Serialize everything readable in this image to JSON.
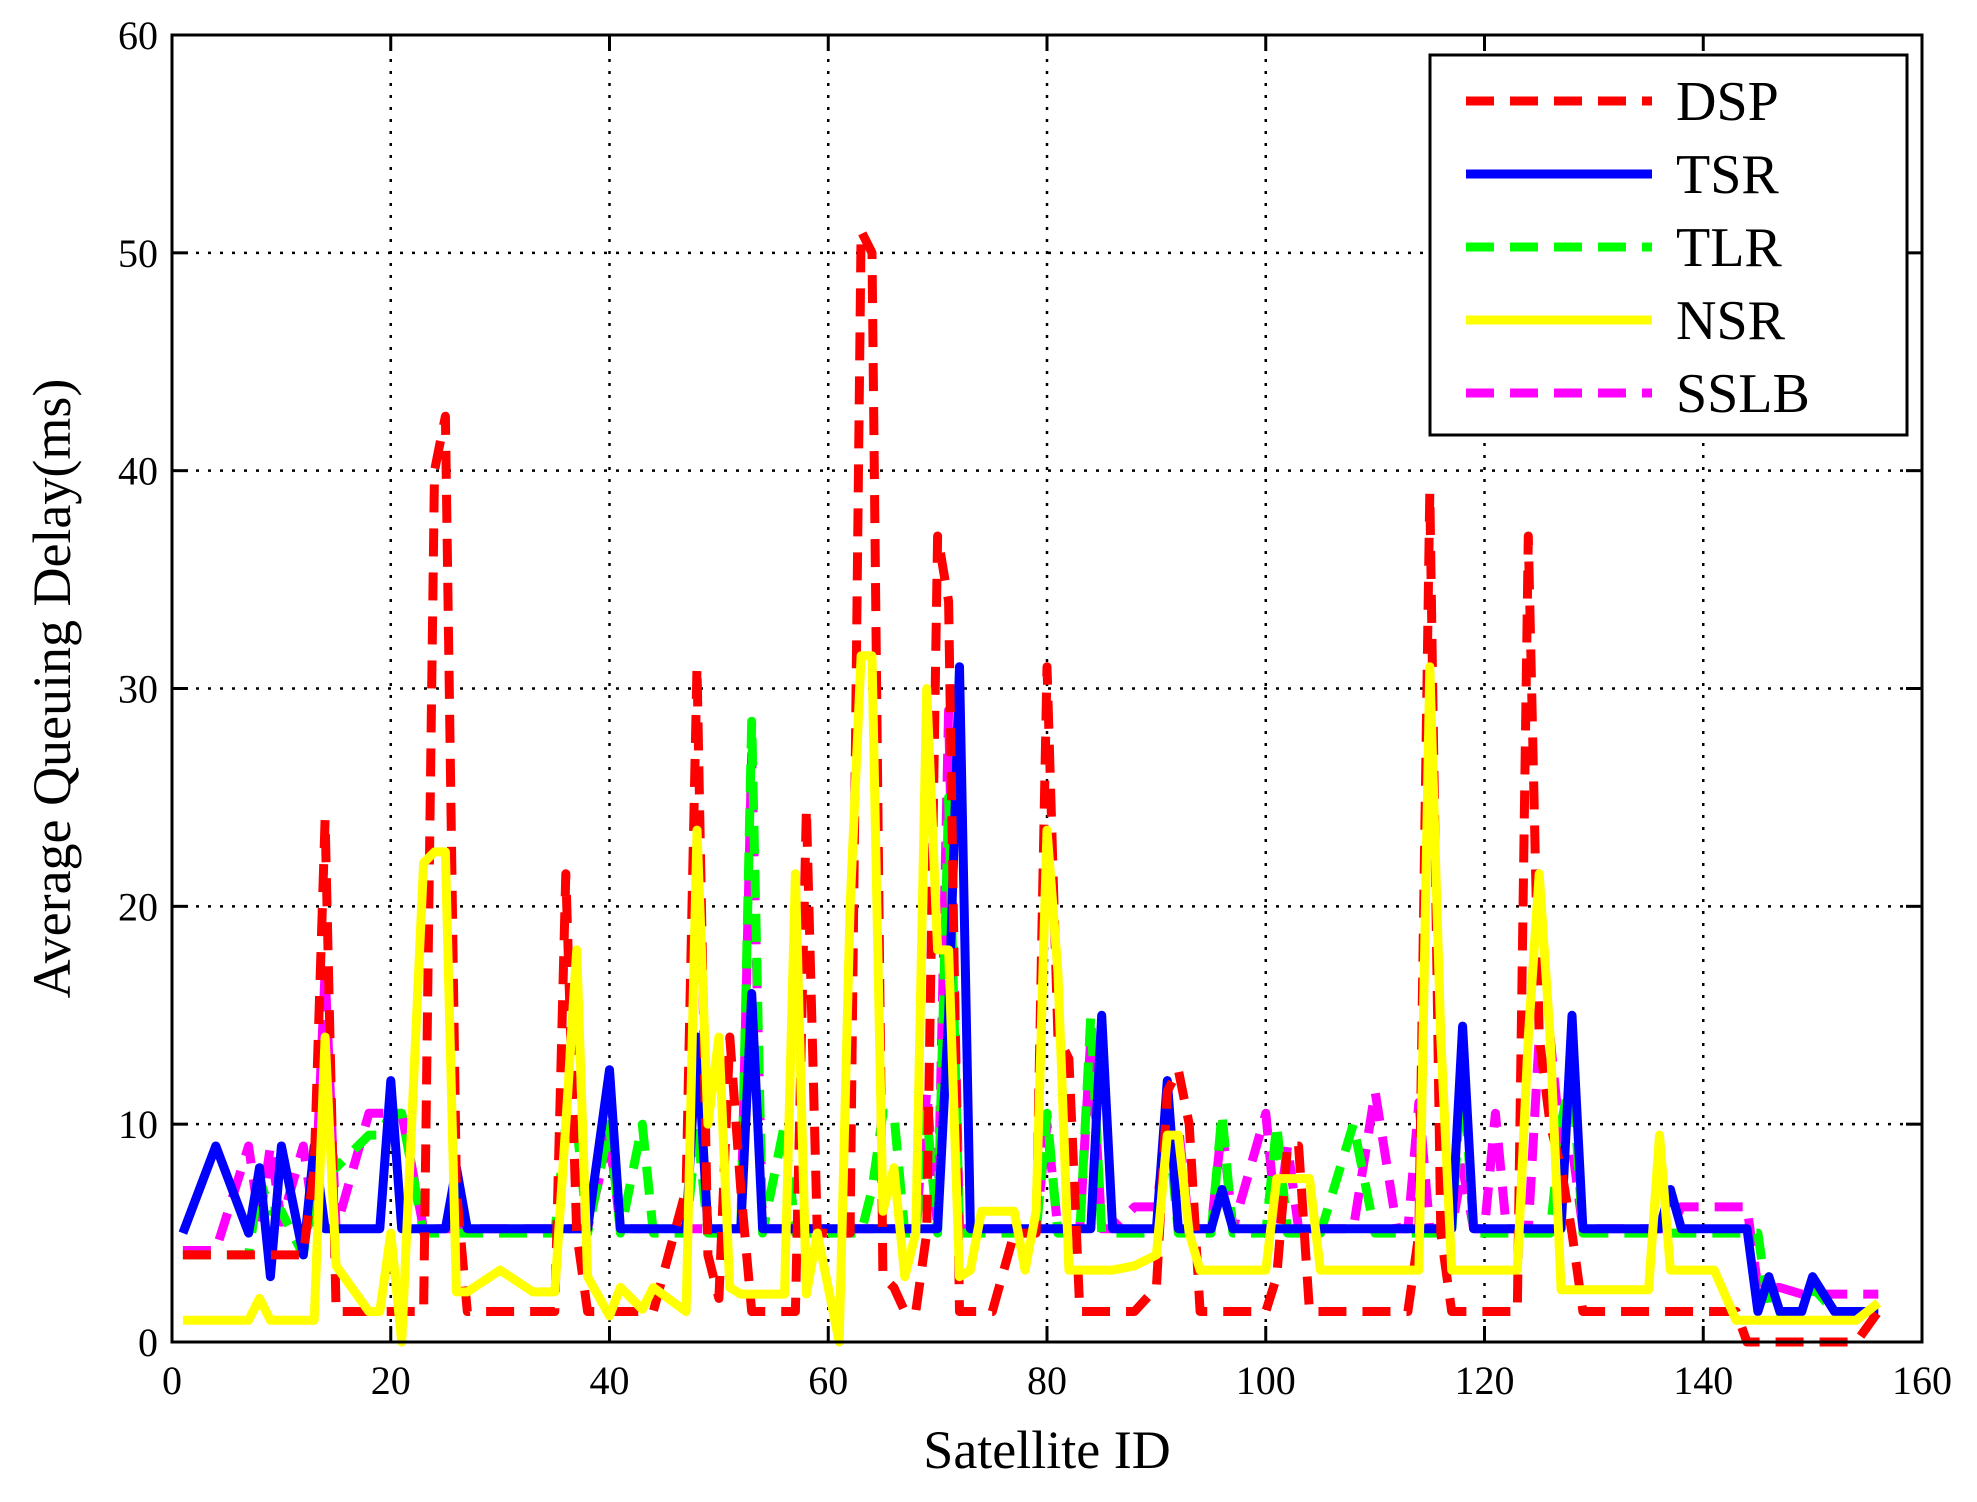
{
  "chart_data": {
    "type": "line",
    "title": "",
    "xlabel": "Satellite ID",
    "ylabel": "Average Queuing Delay(ms)",
    "xlim": [
      0,
      160
    ],
    "ylim": [
      0,
      60
    ],
    "xticks": [
      0,
      20,
      40,
      60,
      80,
      100,
      120,
      140,
      160
    ],
    "yticks": [
      0,
      10,
      20,
      30,
      40,
      50,
      60
    ],
    "xtick_labels": [
      "0",
      "20",
      "40",
      "60",
      "80",
      "100",
      "120",
      "140",
      "160"
    ],
    "ytick_labels": [
      "0",
      "10",
      "20",
      "30",
      "40",
      "50",
      "60"
    ],
    "grid": true,
    "legend_position": "top-right",
    "x": [
      1,
      4,
      7,
      8,
      9,
      10,
      12,
      13,
      14,
      15,
      18,
      19,
      20,
      21,
      23,
      24,
      25,
      26,
      27,
      30,
      33,
      35,
      36,
      37,
      38,
      40,
      41,
      43,
      44,
      47,
      48,
      49,
      50,
      51,
      52,
      53,
      54,
      56,
      57,
      58,
      59,
      61,
      62,
      63,
      64,
      65,
      66,
      67,
      68,
      69,
      70,
      71,
      72,
      73,
      74,
      75,
      77,
      78,
      79,
      80,
      81,
      82,
      83,
      84,
      85,
      86,
      88,
      90,
      91,
      92,
      93,
      94,
      95,
      96,
      97,
      100,
      101,
      102,
      103,
      104,
      105,
      108,
      110,
      112,
      113,
      114,
      115,
      116,
      117,
      118,
      119,
      120,
      121,
      122,
      123,
      124,
      125,
      126,
      127,
      128,
      129,
      132,
      135,
      136,
      137,
      138,
      141,
      143,
      144,
      145,
      146,
      147,
      149,
      150,
      152,
      154,
      156
    ],
    "series": [
      {
        "name": "DSP",
        "color": "#ff0000",
        "style": "dashed",
        "values": [
          4,
          4,
          4,
          4,
          4,
          4,
          4,
          8,
          24,
          1.4,
          1.4,
          1.4,
          1.4,
          1.4,
          1.4,
          40,
          42.5,
          7,
          1.4,
          1.4,
          1.4,
          1.4,
          21.5,
          5,
          1.4,
          1.4,
          1.4,
          1.4,
          1.4,
          7,
          31,
          4,
          2,
          14,
          7,
          1.4,
          1.4,
          1.4,
          1.4,
          24.5,
          5,
          5,
          5,
          51,
          50,
          3,
          2.5,
          1.4,
          1.4,
          5,
          37,
          34,
          1.4,
          1.4,
          1.4,
          1.4,
          5,
          5,
          5,
          31,
          14,
          13,
          1.4,
          1.4,
          1.4,
          1.4,
          1.4,
          2.5,
          11.5,
          12.5,
          10,
          1.4,
          1.4,
          1.4,
          1.4,
          1.4,
          3,
          9,
          9,
          1.4,
          1.4,
          1.4,
          1.4,
          1.4,
          1.4,
          5,
          39,
          5,
          1.4,
          1.4,
          1.4,
          1.4,
          1.4,
          1.4,
          1.4,
          37,
          14,
          10,
          8,
          5,
          1.4,
          1.4,
          1.4,
          1.4,
          1.4,
          1.4,
          1.4,
          1.4,
          0,
          0,
          0,
          0,
          0,
          0,
          0,
          0,
          1.4
        ]
      },
      {
        "name": "TSR",
        "color": "#0000ff",
        "style": "solid",
        "values": [
          5,
          9,
          5,
          8,
          3,
          9,
          4,
          9,
          5.2,
          5.2,
          5.2,
          5.2,
          12,
          5.2,
          5.2,
          5.2,
          5.2,
          8,
          5.2,
          5.2,
          5.2,
          5.2,
          5.2,
          5.2,
          5.2,
          12.5,
          5.2,
          5.2,
          5.2,
          5.2,
          14,
          5.2,
          5.2,
          5.2,
          5.2,
          16,
          5.2,
          5.2,
          5.2,
          5.2,
          5.2,
          5.2,
          5.2,
          5.2,
          5.2,
          5.2,
          5.2,
          5.2,
          5.2,
          5.2,
          5.2,
          15,
          31,
          5.2,
          5.2,
          5.2,
          5.2,
          5.2,
          5.2,
          5.2,
          5.2,
          5.2,
          5.2,
          5.2,
          15,
          5.2,
          5.2,
          5.2,
          12,
          5.2,
          5.2,
          5.2,
          5.2,
          7,
          5.2,
          5.2,
          5.2,
          5.2,
          5.2,
          5.2,
          5.2,
          5.2,
          5.2,
          5.2,
          5.2,
          5.2,
          5.2,
          5.2,
          5.2,
          14.5,
          5.2,
          5.2,
          5.2,
          5.2,
          5.2,
          5.2,
          5.2,
          5.2,
          5.2,
          15,
          5.2,
          5.2,
          5.2,
          5.2,
          7,
          5.2,
          5.2,
          5.2,
          5.2,
          1.4,
          3,
          1.4,
          1.4,
          3,
          1.4,
          1.4,
          1.4
        ]
      },
      {
        "name": "TLR",
        "color": "#00ff00",
        "style": "dashed",
        "values": [
          4,
          4,
          4,
          7.5,
          6,
          6,
          4,
          7,
          10,
          8,
          9.5,
          9.5,
          10.5,
          10.5,
          5,
          5,
          5,
          5,
          5,
          5,
          5,
          5,
          10,
          10,
          5,
          10,
          5,
          10,
          5,
          5,
          10,
          5,
          5,
          5,
          5,
          28.5,
          5,
          10,
          5,
          5,
          5,
          5,
          5,
          5,
          7,
          10.5,
          10.5,
          5,
          5,
          10.5,
          5,
          25,
          5,
          5,
          5,
          5,
          5,
          5,
          5,
          10.5,
          5,
          5,
          5,
          15,
          5,
          5,
          5,
          5,
          10.5,
          5,
          5,
          5,
          5,
          10.5,
          5,
          5,
          10,
          5,
          5,
          5,
          5,
          10,
          5,
          5,
          5,
          5,
          5,
          5,
          5,
          13,
          5,
          5,
          5,
          5,
          5,
          5,
          5,
          5,
          10,
          12.5,
          5,
          5,
          5,
          5,
          5,
          5,
          5,
          5,
          5,
          5,
          1.4,
          1.4,
          1.4,
          2.5,
          1.4,
          1.4,
          1.4
        ]
      },
      {
        "name": "NSR",
        "color": "#ffff00",
        "style": "solid",
        "values": [
          1,
          1,
          1,
          2,
          1,
          1,
          1,
          1,
          14,
          3.5,
          1.4,
          1.4,
          5,
          0,
          22,
          22.5,
          22.5,
          2.3,
          2.3,
          3.3,
          2.3,
          2.3,
          10,
          18,
          3,
          1.2,
          2.5,
          1.5,
          2.5,
          1.4,
          23.5,
          10,
          14,
          2.5,
          2.2,
          2.2,
          2.2,
          2.2,
          21.5,
          2.2,
          5,
          0,
          20,
          31.5,
          31.5,
          6,
          8,
          3,
          5,
          30,
          18,
          18,
          3,
          3.3,
          6,
          6,
          6,
          3.3,
          6,
          23.5,
          17,
          3.3,
          3.3,
          3.3,
          3.3,
          3.3,
          3.5,
          4,
          9.5,
          9.5,
          5,
          3.3,
          3.3,
          3.3,
          3.3,
          3.3,
          7.5,
          7.5,
          7.5,
          7.5,
          3.3,
          3.3,
          3.3,
          3.3,
          3.3,
          3.3,
          31,
          14,
          3.3,
          3.3,
          3.3,
          3.3,
          3.3,
          3.3,
          3.3,
          14,
          21.5,
          14,
          2.4,
          2.4,
          2.4,
          2.4,
          2.4,
          9.5,
          3.3,
          3.3,
          3.3,
          1,
          1,
          1,
          1,
          1,
          1,
          1,
          1,
          1,
          1.8
        ]
      },
      {
        "name": "SSLB",
        "color": "#ff00ff",
        "style": "dashed",
        "values": [
          4.2,
          4.2,
          9,
          5.5,
          9,
          5.5,
          9,
          5.5,
          17,
          5.2,
          10.5,
          10.5,
          10.5,
          10.5,
          5.2,
          5.2,
          5.2,
          5.2,
          5.2,
          5.2,
          5.2,
          5.2,
          5.2,
          5.2,
          5.2,
          9.5,
          5.2,
          5.2,
          5.2,
          5.2,
          5.2,
          5.2,
          5.2,
          5.2,
          5.2,
          27,
          5.2,
          5.2,
          5.2,
          5.2,
          5.2,
          5.2,
          5.2,
          5.2,
          5.2,
          5.2,
          5.2,
          5.2,
          5.2,
          11.5,
          5.2,
          29,
          5.2,
          5.2,
          5.2,
          5.2,
          5.2,
          5.2,
          5.2,
          10,
          5.2,
          5.2,
          5.2,
          14,
          5.2,
          5.2,
          6.2,
          6.2,
          10,
          10,
          5.2,
          5.2,
          5.2,
          10,
          5.2,
          10.5,
          5.2,
          9,
          5.2,
          5.2,
          5.2,
          5.2,
          11.5,
          5.2,
          5.2,
          11,
          5.2,
          5.2,
          5.2,
          8,
          5.2,
          5.2,
          10.5,
          5.2,
          5.2,
          5.2,
          14,
          14,
          9,
          9,
          5.2,
          5.2,
          5.2,
          5.2,
          5.2,
          6.2,
          6.2,
          6.2,
          6.2,
          2.5,
          2.5,
          2.5,
          2.2,
          2.2,
          2.2,
          2.2,
          2.2
        ]
      }
    ],
    "legend": [
      "DSP",
      "TSR",
      "TLR",
      "NSR",
      "SSLB"
    ]
  }
}
